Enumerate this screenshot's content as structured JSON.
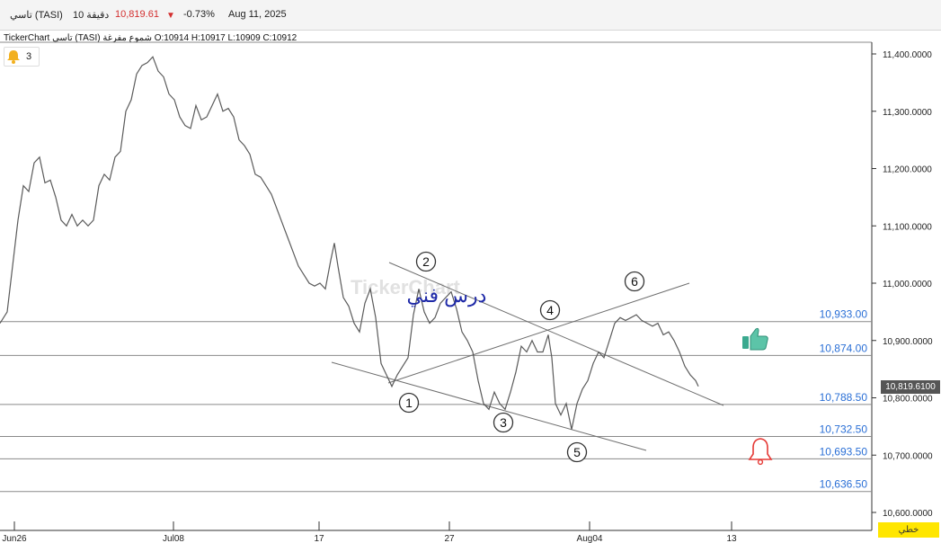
{
  "header": {
    "symbol": "تاسي (TASI)",
    "interval": "10 دقيقة",
    "last_price": "10,819.61",
    "change_icon": "down-triangle-icon",
    "change_pct": "-0.73%",
    "date": "Aug 11, 2025",
    "colors": {
      "price": "#d32f2f",
      "down": "#d32f2f"
    }
  },
  "legend": {
    "source": "TickerChart",
    "symbol": "تاسي (TASI)",
    "chart_type": "شموع مفرغة",
    "open": "O:10914",
    "high": "H:10917",
    "low": "L:10909",
    "close": "C:10912"
  },
  "alerts": {
    "icon": "bell-icon",
    "count": "3"
  },
  "watermark": {
    "text": "TickerChart",
    "lesson_text": "درس فني"
  },
  "current_price_label": "10,819.6100",
  "footer": {
    "badge_label": "خطي"
  },
  "icons": {
    "thumbs_up": "thumbs-up-icon",
    "alarm": "bell-alarm-icon"
  },
  "chart_data": {
    "type": "line",
    "title": "",
    "xlabel": "",
    "ylabel": "",
    "x_tick_labels": [
      "Jun26",
      "Jul08",
      "17",
      "27",
      "Aug04",
      "13"
    ],
    "y_tick_labels": [
      "11,400.0000",
      "11,300.0000",
      "11,200.0000",
      "11,100.0000",
      "11,000.0000",
      "10,900.0000",
      "10,800.0000",
      "10,700.0000",
      "10,600.0000"
    ],
    "ylim": [
      10580,
      11440
    ],
    "grid": false,
    "series": [
      {
        "x": [
          0,
          8,
          14,
          20,
          26,
          32,
          38,
          44,
          50,
          56,
          62,
          68,
          74,
          80,
          86,
          92,
          98,
          104,
          110,
          116,
          122,
          128,
          134,
          140,
          146,
          152,
          158,
          164,
          170,
          176,
          182,
          188,
          194,
          200,
          206,
          212,
          218,
          224,
          230,
          236,
          242,
          248,
          254,
          260,
          266,
          272,
          278,
          284,
          290,
          296,
          302,
          308,
          314,
          320,
          326,
          332,
          338,
          344,
          350,
          356,
          362,
          368,
          372,
          376,
          382,
          388,
          394,
          400,
          406,
          412,
          418,
          424,
          430,
          436,
          442,
          448,
          454,
          460,
          466,
          472,
          478,
          484,
          490,
          496,
          502,
          508,
          514,
          520,
          526,
          532,
          538,
          544,
          550,
          556,
          562,
          568,
          574,
          580,
          586,
          592,
          598,
          604,
          610,
          614,
          618,
          624,
          630,
          636,
          642,
          648,
          654,
          660,
          666,
          672,
          678,
          684,
          690,
          696,
          702,
          708,
          714,
          720,
          726,
          732,
          738,
          744,
          750,
          756,
          762,
          768,
          774,
          777
        ],
        "values": [
          10930,
          10950,
          11030,
          11110,
          11170,
          11160,
          11210,
          11220,
          11175,
          11180,
          11150,
          11110,
          11100,
          11120,
          11100,
          11110,
          11100,
          11110,
          11170,
          11190,
          11180,
          11220,
          11230,
          11300,
          11320,
          11365,
          11380,
          11385,
          11395,
          11370,
          11360,
          11330,
          11320,
          11290,
          11275,
          11270,
          11310,
          11285,
          11290,
          11310,
          11330,
          11300,
          11305,
          11290,
          11250,
          11240,
          11225,
          11190,
          11185,
          11170,
          11155,
          11130,
          11105,
          11080,
          11055,
          11030,
          11015,
          11000,
          10995,
          11000,
          10990,
          11040,
          11070,
          11030,
          10975,
          10960,
          10930,
          10915,
          10965,
          10990,
          10940,
          10860,
          10840,
          10820,
          10840,
          10855,
          10870,
          10945,
          10990,
          10950,
          10930,
          10940,
          10965,
          10975,
          10985,
          10955,
          10915,
          10900,
          10880,
          10830,
          10790,
          10780,
          10810,
          10790,
          10780,
          10810,
          10845,
          10890,
          10880,
          10900,
          10880,
          10880,
          10910,
          10870,
          10790,
          10770,
          10790,
          10745,
          10790,
          10815,
          10830,
          10860,
          10880,
          10870,
          10900,
          10930,
          10940,
          10935,
          10940,
          10945,
          10935,
          10930,
          10925,
          10930,
          10910,
          10915,
          10900,
          10880,
          10855,
          10840,
          10830,
          10820
        ]
      }
    ],
    "horizontal_levels": [
      {
        "value": 10933,
        "label": "10,933.00"
      },
      {
        "value": 10874,
        "label": "10,874.00"
      },
      {
        "value": 10788.5,
        "label": "10,788.50"
      },
      {
        "value": 10732.5,
        "label": "10,732.50"
      },
      {
        "value": 10693.5,
        "label": "10,693.50"
      },
      {
        "value": 10636.5,
        "label": "10,636.50"
      }
    ],
    "wave_labels": [
      "1",
      "2",
      "3",
      "4",
      "5",
      "6"
    ],
    "colors": {
      "price_line": "#5a5a5a",
      "level_line": "#8a8a8a",
      "level_label": "#2a6fd6",
      "trendline": "#6e6e6e",
      "lesson_text": "#1f2aa8",
      "thumbs_up": "#3aa98f",
      "alarm": "#e53935"
    }
  }
}
